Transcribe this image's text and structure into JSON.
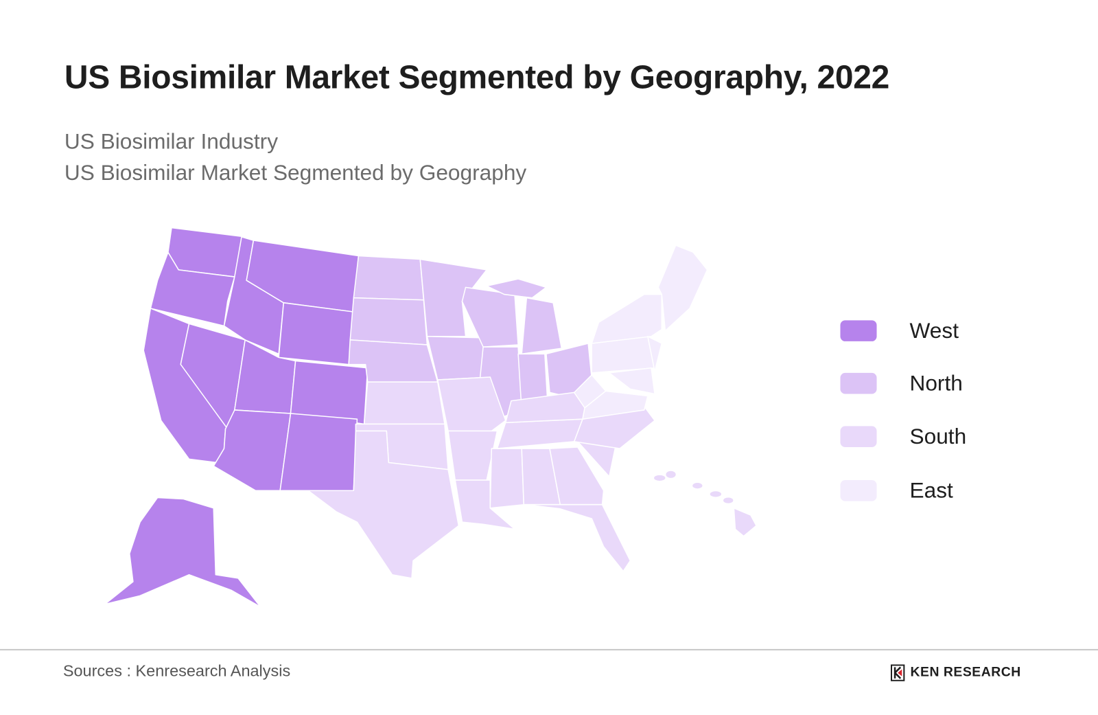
{
  "title": "US Biosimilar Market Segmented by Geography, 2022",
  "subtitles": [
    "US Biosimilar Industry",
    "US Biosimilar Market Segmented by Geography"
  ],
  "regions": [
    {
      "name": "West",
      "color": "#b683ec",
      "states": [
        "WA",
        "OR",
        "ID",
        "MT",
        "WY",
        "CA",
        "NV",
        "UT",
        "CO",
        "AZ",
        "NM",
        "AK"
      ]
    },
    {
      "name": "North",
      "color": "#dcc3f6",
      "states": [
        "ND",
        "SD",
        "NE",
        "MN",
        "IA",
        "WI",
        "IL",
        "IN",
        "MI",
        "MI-UP",
        "OH"
      ]
    },
    {
      "name": "South",
      "color": "#e9d9fa",
      "states": [
        "KS",
        "OK",
        "TX",
        "MO",
        "AR",
        "LA",
        "MS",
        "AL",
        "GA",
        "FL",
        "TN",
        "KY",
        "SC",
        "NC",
        "HI"
      ]
    },
    {
      "name": "East",
      "color": "#f3ecfd",
      "states": [
        "WV",
        "VA",
        "PA",
        "NY",
        "NJ",
        "NE-ENG",
        "MD"
      ]
    }
  ],
  "footer": {
    "source": "Sources : Kenresearch Analysis",
    "logo_text": "KEN RESEARCH",
    "logo_accent": "#d8262e"
  }
}
